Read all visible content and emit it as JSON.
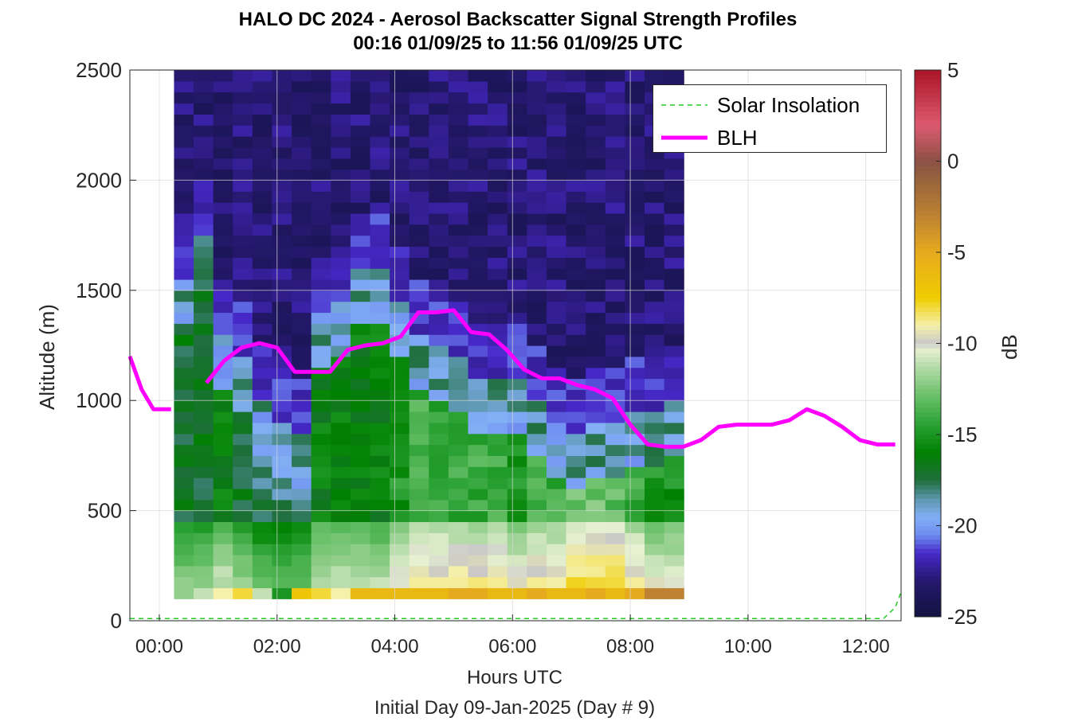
{
  "chart_data": {
    "type": "heatmap",
    "title": [
      "HALO DC 2024 - Aerosol Backscatter Signal Strength Profiles",
      "00:16 01/09/25 to 11:56 01/09/25  UTC"
    ],
    "xlabel": "Hours UTC",
    "xlabel2": "Initial Day 09-Jan-2025 (Day # 9)",
    "ylabel": "Altitude (m)",
    "colorbar_label": "dB",
    "xlim": [
      -0.5,
      12.6
    ],
    "ylim": [
      0,
      2500
    ],
    "xticks": [
      0,
      2,
      4,
      6,
      8,
      10,
      12
    ],
    "xtick_labels": [
      "00:00",
      "02:00",
      "04:00",
      "06:00",
      "08:00",
      "10:00",
      "12:00"
    ],
    "yticks": [
      0,
      500,
      1000,
      1500,
      2000,
      2500
    ],
    "ytick_labels": [
      "0",
      "500",
      "1000",
      "1500",
      "2000",
      "2500"
    ],
    "clim": [
      -25,
      5
    ],
    "cticks": [
      -25,
      -20,
      -15,
      -10,
      -5,
      0,
      5
    ],
    "ctick_labels": [
      "-25",
      "-20",
      "-15",
      "-10",
      "-5",
      "0",
      "5"
    ],
    "grid": true,
    "legend_position": "top-right",
    "legend": [
      {
        "name": "Solar Insolation",
        "style": "dashed",
        "color": "#22cc22"
      },
      {
        "name": "BLH",
        "style": "solid",
        "color": "#ff00ff"
      }
    ],
    "heatmap": {
      "x_start": 0.25,
      "x_step": 0.333,
      "n_cols": 26,
      "y_start": 100,
      "y_step": 50,
      "n_rows": 48,
      "anchors": {
        "cols": [
          0,
          1,
          2,
          3,
          4,
          5,
          6,
          7,
          8,
          9,
          10,
          11,
          12,
          13,
          14,
          15,
          16,
          17,
          18,
          19,
          20,
          21,
          22,
          23,
          24,
          25
        ],
        "base_color_db": [
          -15,
          -15,
          -14,
          -15,
          -16,
          -16,
          -16,
          -14,
          -14,
          -14,
          -14,
          -13,
          -12,
          -12,
          -12,
          -12,
          -12,
          -13,
          -12,
          -12,
          -11,
          -11,
          -11,
          -12,
          -13,
          -13
        ],
        "near_surface_db": [
          -12,
          -11,
          -9,
          -8,
          -11,
          -15,
          -7,
          -8,
          -9,
          -6,
          -6,
          -6,
          -6,
          -6,
          -5,
          -5,
          -6,
          -6,
          -5,
          -6,
          -6,
          -5,
          -6,
          -5,
          -3,
          -3
        ],
        "aerosol_top_m": [
          1550,
          1750,
          1300,
          1200,
          1000,
          900,
          850,
          1400,
          1450,
          1600,
          1600,
          1450,
          1300,
          1250,
          1200,
          1100,
          1100,
          1100,
          1000,
          900,
          850,
          900,
          900,
          950,
          950,
          1000
        ],
        "upper_db": -23
      }
    },
    "blh": {
      "x": [
        -0.5,
        -0.3,
        -0.1,
        0.2,
        0.5,
        0.8,
        1.1,
        1.4,
        1.7,
        2.0,
        2.3,
        2.6,
        2.9,
        3.2,
        3.5,
        3.8,
        4.1,
        4.4,
        4.7,
        5.0,
        5.3,
        5.6,
        5.9,
        6.2,
        6.5,
        6.8,
        7.1,
        7.4,
        7.7,
        8.0,
        8.3,
        8.6,
        8.9,
        9.2,
        9.5,
        9.8,
        10.1,
        10.4,
        10.7,
        11.0,
        11.3,
        11.6,
        11.9,
        12.2,
        12.5
      ],
      "y": [
        1200,
        1050,
        960,
        960,
        null,
        1080,
        1180,
        1240,
        1260,
        1240,
        1130,
        1130,
        1130,
        1230,
        1250,
        1260,
        1290,
        1400,
        1400,
        1410,
        1310,
        1300,
        1230,
        1140,
        1100,
        1100,
        1070,
        1050,
        1010,
        890,
        800,
        790,
        790,
        820,
        880,
        890,
        890,
        890,
        910,
        960,
        930,
        880,
        820,
        800,
        800
      ]
    },
    "solar_insolation": {
      "x": [
        -0.5,
        12.3,
        12.5,
        12.6
      ],
      "y": [
        10,
        10,
        60,
        130
      ]
    }
  }
}
